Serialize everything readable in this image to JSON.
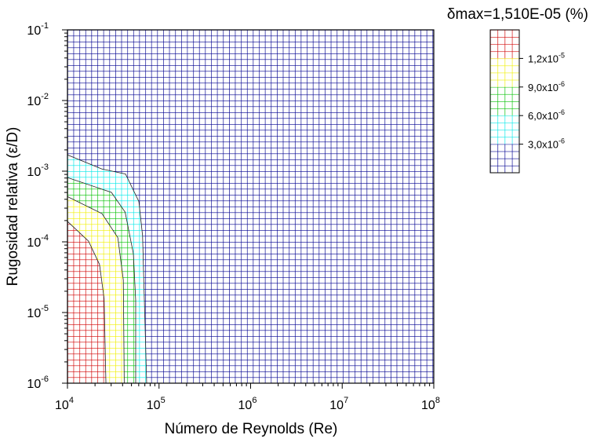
{
  "chart_data": {
    "type": "contour",
    "title": "δmax=1,510E-05 (%)",
    "xlabel": "Número de Reynolds (Re)",
    "ylabel": "Rugosidad relativa (ε/D)",
    "xscale": "log",
    "yscale": "log",
    "xlim_log10": [
      4,
      8
    ],
    "ylim_log10": [
      -6,
      -1
    ],
    "x_ticks": [
      {
        "base": "10",
        "exp": "4"
      },
      {
        "base": "10",
        "exp": "5"
      },
      {
        "base": "10",
        "exp": "6"
      },
      {
        "base": "10",
        "exp": "7"
      },
      {
        "base": "10",
        "exp": "8"
      }
    ],
    "y_ticks": [
      {
        "base": "10",
        "exp": "-1"
      },
      {
        "base": "10",
        "exp": "-2"
      },
      {
        "base": "10",
        "exp": "-3"
      },
      {
        "base": "10",
        "exp": "-4"
      },
      {
        "base": "10",
        "exp": "-5"
      },
      {
        "base": "10",
        "exp": "-6"
      }
    ],
    "levels": [
      {
        "name": "blue",
        "color": "#000090",
        "range": "< 3,0x10^-6"
      },
      {
        "name": "cyan",
        "color": "#00e8e8",
        "range": "3,0x10^-6 – 6,0x10^-6"
      },
      {
        "name": "green",
        "color": "#00c000",
        "range": "6,0x10^-6 – 9,0x10^-6"
      },
      {
        "name": "yellow",
        "color": "#f0f000",
        "range": "9,0x10^-6 – 1,2x10^-5"
      },
      {
        "name": "red",
        "color": "#d00000",
        "range": "> 1,2x10^-5"
      }
    ],
    "contour_boundaries_log10": [
      {
        "level": "cyan",
        "points": [
          [
            4,
            -2.77
          ],
          [
            4.377,
            -2.97
          ],
          [
            4.634,
            -3.04
          ],
          [
            4.78,
            -3.43
          ],
          [
            4.82,
            -3.91
          ],
          [
            4.865,
            -6
          ]
        ]
      },
      {
        "level": "green",
        "points": [
          [
            4,
            -3.09
          ],
          [
            4.48,
            -3.3
          ],
          [
            4.63,
            -3.58
          ],
          [
            4.72,
            -4.17
          ],
          [
            4.745,
            -4.83
          ],
          [
            4.745,
            -6
          ]
        ]
      },
      {
        "level": "yellow",
        "points": [
          [
            4,
            -3.36
          ],
          [
            4.377,
            -3.6
          ],
          [
            4.55,
            -3.94
          ],
          [
            4.61,
            -4.54
          ],
          [
            4.62,
            -6
          ]
        ]
      },
      {
        "level": "red",
        "points": [
          [
            4,
            -3.71
          ],
          [
            4.23,
            -3.99
          ],
          [
            4.35,
            -4.32
          ],
          [
            4.4,
            -4.8
          ],
          [
            4.42,
            -6
          ]
        ]
      }
    ],
    "colorbar": {
      "tick_labels": [
        {
          "mant": "1,2x10",
          "exp": "-5"
        },
        {
          "mant": "9,0x10",
          "exp": "-6"
        },
        {
          "mant": "6,0x10",
          "exp": "-6"
        },
        {
          "mant": "3,0x10",
          "exp": "-6"
        }
      ]
    }
  }
}
